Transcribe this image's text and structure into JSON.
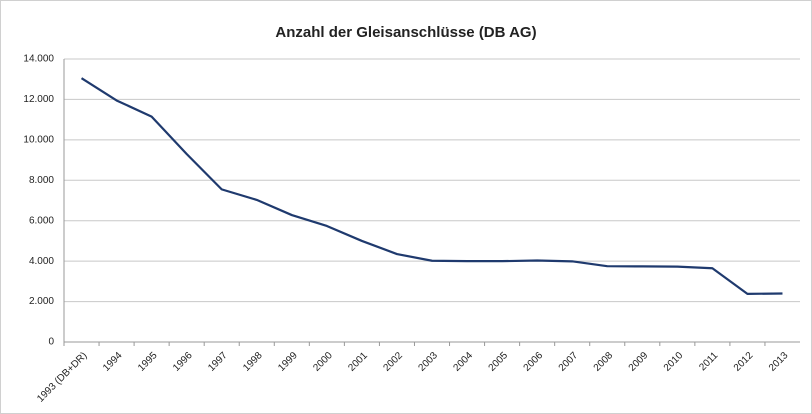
{
  "chart_data": {
    "type": "line",
    "title": "Anzahl der Gleisanschlüsse (DB AG)",
    "categories": [
      "1993 (DB+DR)",
      "1994",
      "1995",
      "1996",
      "1997",
      "1998",
      "1999",
      "2000",
      "2001",
      "2002",
      "2003",
      "2004",
      "2005",
      "2006",
      "2007",
      "2008",
      "2009",
      "2010",
      "2011",
      "2012",
      "2013"
    ],
    "values": [
      13050,
      11950,
      11150,
      9300,
      7550,
      7030,
      6280,
      5740,
      5000,
      4350,
      4020,
      4000,
      4000,
      4030,
      3990,
      3750,
      3740,
      3730,
      3650,
      2380,
      2400
    ],
    "color": "#1f3a6e",
    "ylim": [
      0,
      14000
    ],
    "yticks": [
      0,
      {
        "value": 2000,
        "label": "2.000"
      },
      {
        "value": 4000,
        "label": "4.000"
      },
      {
        "value": 6000,
        "label": "6.000"
      },
      {
        "value": 8000,
        "label": "8.000"
      },
      {
        "value": 10000,
        "label": "10.000"
      },
      {
        "value": 12000,
        "label": "12.000"
      },
      {
        "value": 14000,
        "label": "14.000"
      }
    ],
    "grid": true
  }
}
